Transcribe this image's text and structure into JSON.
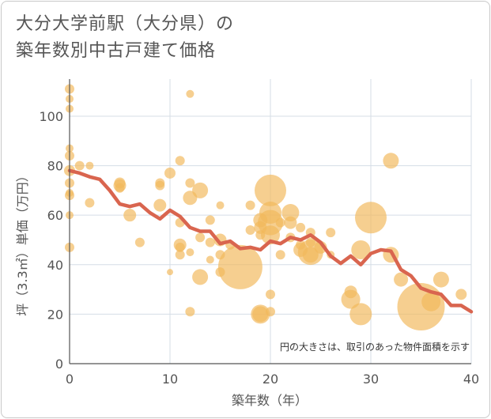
{
  "chart_data": {
    "type": "scatter",
    "title_lines": [
      "大分大学前駅（大分県）の",
      "築年数別中古戸建て価格"
    ],
    "xlabel": "築年数（年）",
    "ylabel": "坪（3.3㎡）単価（万円）",
    "note": "円の大きさは、取引のあった物件面積を示す",
    "xlim": [
      0,
      40
    ],
    "ylim": [
      0,
      115
    ],
    "xticks": [
      0,
      10,
      20,
      30,
      40
    ],
    "yticks": [
      0,
      20,
      40,
      60,
      80,
      100
    ],
    "grid": true,
    "bubble_color": "#f2b85c",
    "line_color": "#d9654f",
    "bubbles": [
      {
        "x": 0,
        "y": 111,
        "r": 6
      },
      {
        "x": 0,
        "y": 107,
        "r": 5
      },
      {
        "x": 0,
        "y": 103,
        "r": 5
      },
      {
        "x": 0,
        "y": 87,
        "r": 5
      },
      {
        "x": 0,
        "y": 84,
        "r": 6
      },
      {
        "x": 0,
        "y": 78,
        "r": 7
      },
      {
        "x": 0,
        "y": 73,
        "r": 6
      },
      {
        "x": 0,
        "y": 69,
        "r": 5
      },
      {
        "x": 0,
        "y": 68,
        "r": 6
      },
      {
        "x": 0,
        "y": 60,
        "r": 5
      },
      {
        "x": 0,
        "y": 47,
        "r": 6
      },
      {
        "x": 1,
        "y": 80,
        "r": 6
      },
      {
        "x": 2,
        "y": 80,
        "r": 5
      },
      {
        "x": 2,
        "y": 65,
        "r": 6
      },
      {
        "x": 5,
        "y": 73,
        "r": 7
      },
      {
        "x": 5,
        "y": 72,
        "r": 8
      },
      {
        "x": 5,
        "y": 71,
        "r": 6
      },
      {
        "x": 6,
        "y": 60,
        "r": 8
      },
      {
        "x": 7,
        "y": 49,
        "r": 6
      },
      {
        "x": 9,
        "y": 73,
        "r": 6
      },
      {
        "x": 9,
        "y": 72,
        "r": 6
      },
      {
        "x": 9,
        "y": 64,
        "r": 8
      },
      {
        "x": 10,
        "y": 77,
        "r": 7
      },
      {
        "x": 10,
        "y": 37,
        "r": 4
      },
      {
        "x": 11,
        "y": 82,
        "r": 6
      },
      {
        "x": 11,
        "y": 57,
        "r": 6
      },
      {
        "x": 11,
        "y": 48,
        "r": 8
      },
      {
        "x": 11,
        "y": 47,
        "r": 6
      },
      {
        "x": 11,
        "y": 44,
        "r": 6
      },
      {
        "x": 12,
        "y": 109,
        "r": 5
      },
      {
        "x": 12,
        "y": 73,
        "r": 6
      },
      {
        "x": 12,
        "y": 67,
        "r": 9
      },
      {
        "x": 12,
        "y": 45,
        "r": 5
      },
      {
        "x": 12,
        "y": 21,
        "r": 6
      },
      {
        "x": 13,
        "y": 70,
        "r": 10
      },
      {
        "x": 13,
        "y": 51,
        "r": 6
      },
      {
        "x": 13,
        "y": 35,
        "r": 10
      },
      {
        "x": 14,
        "y": 58,
        "r": 6
      },
      {
        "x": 14,
        "y": 49,
        "r": 6
      },
      {
        "x": 14,
        "y": 42,
        "r": 5
      },
      {
        "x": 15,
        "y": 64,
        "r": 5
      },
      {
        "x": 15,
        "y": 50,
        "r": 8
      },
      {
        "x": 15,
        "y": 44,
        "r": 6
      },
      {
        "x": 15,
        "y": 37,
        "r": 6
      },
      {
        "x": 16,
        "y": 48,
        "r": 6
      },
      {
        "x": 17,
        "y": 39,
        "r": 28
      },
      {
        "x": 18,
        "y": 64,
        "r": 6
      },
      {
        "x": 18,
        "y": 54,
        "r": 6
      },
      {
        "x": 19,
        "y": 58,
        "r": 9
      },
      {
        "x": 19,
        "y": 55,
        "r": 8
      },
      {
        "x": 19,
        "y": 52,
        "r": 6
      },
      {
        "x": 19,
        "y": 20,
        "r": 12
      },
      {
        "x": 19,
        "y": 20,
        "r": 10
      },
      {
        "x": 20,
        "y": 70,
        "r": 20
      },
      {
        "x": 20,
        "y": 61,
        "r": 14
      },
      {
        "x": 20,
        "y": 57,
        "r": 16
      },
      {
        "x": 20,
        "y": 52,
        "r": 12
      },
      {
        "x": 20,
        "y": 28,
        "r": 6
      },
      {
        "x": 20,
        "y": 21,
        "r": 6
      },
      {
        "x": 21,
        "y": 57,
        "r": 6
      },
      {
        "x": 21,
        "y": 44,
        "r": 6
      },
      {
        "x": 22,
        "y": 61,
        "r": 11
      },
      {
        "x": 22,
        "y": 57,
        "r": 8
      },
      {
        "x": 22,
        "y": 51,
        "r": 6
      },
      {
        "x": 23,
        "y": 55,
        "r": 6
      },
      {
        "x": 23,
        "y": 48,
        "r": 6
      },
      {
        "x": 23,
        "y": 46,
        "r": 9
      },
      {
        "x": 24,
        "y": 53,
        "r": 6
      },
      {
        "x": 24,
        "y": 49,
        "r": 6
      },
      {
        "x": 24,
        "y": 45,
        "r": 16
      },
      {
        "x": 24,
        "y": 44,
        "r": 10
      },
      {
        "x": 25,
        "y": 47,
        "r": 8
      },
      {
        "x": 26,
        "y": 53,
        "r": 6
      },
      {
        "x": 26,
        "y": 44,
        "r": 5
      },
      {
        "x": 28,
        "y": 29,
        "r": 8
      },
      {
        "x": 28,
        "y": 26,
        "r": 12
      },
      {
        "x": 29,
        "y": 46,
        "r": 12
      },
      {
        "x": 29,
        "y": 20,
        "r": 14
      },
      {
        "x": 30,
        "y": 59,
        "r": 20
      },
      {
        "x": 32,
        "y": 82,
        "r": 10
      },
      {
        "x": 32,
        "y": 44,
        "r": 10
      },
      {
        "x": 33,
        "y": 34,
        "r": 9
      },
      {
        "x": 35,
        "y": 23,
        "r": 30
      },
      {
        "x": 36,
        "y": 25,
        "r": 12
      },
      {
        "x": 37,
        "y": 34,
        "r": 10
      },
      {
        "x": 39,
        "y": 28,
        "r": 7
      }
    ],
    "trend": {
      "x": [
        0,
        1,
        2,
        3,
        4,
        5,
        6,
        7,
        8,
        9,
        10,
        11,
        12,
        13,
        14,
        15,
        16,
        17,
        18,
        19,
        20,
        21,
        22,
        23,
        24,
        25,
        26,
        27,
        28,
        29,
        30,
        31,
        32,
        33,
        34,
        35,
        36,
        37,
        38,
        39,
        40
      ],
      "y": [
        78,
        77,
        75.5,
        74.5,
        70,
        64.5,
        63.5,
        64.5,
        61,
        58.5,
        62,
        59.5,
        55,
        53.5,
        53.5,
        48.5,
        49.5,
        46.5,
        47,
        46,
        49.5,
        48.5,
        51,
        50,
        52,
        49,
        43.5,
        40.5,
        43.5,
        40,
        44.5,
        46,
        45.5,
        38,
        35.5,
        30.5,
        29,
        28,
        23.5,
        23.5,
        21
      ]
    }
  }
}
